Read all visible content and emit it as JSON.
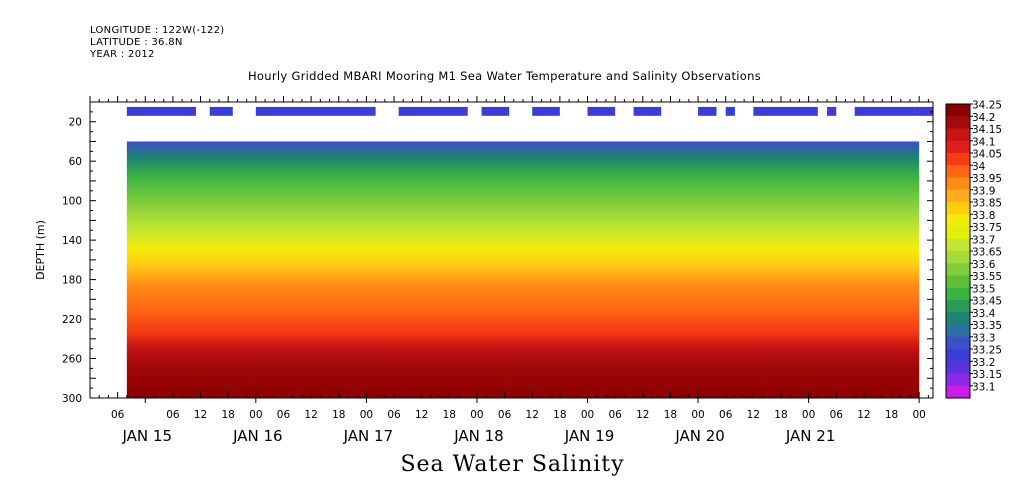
{
  "header": {
    "longitude": "LONGITUDE : 122W(-122)",
    "latitude": "LATITUDE : 36.8N",
    "year": "YEAR : 2012"
  },
  "chart_data": {
    "type": "heatmap",
    "title": "Hourly Gridded MBARI Mooring M1 Sea Water Temperature and Salinity Observations",
    "footer_title": "Sea Water Salinity",
    "ylabel": "DEPTH (m)",
    "xlabel": "",
    "xlim_hours_since_jan15_00": [
      -12,
      171
    ],
    "ylim": [
      300,
      0
    ],
    "y_ticks": [
      20,
      60,
      100,
      140,
      180,
      220,
      260,
      300
    ],
    "x_hour_ticks": [
      {
        "h": -6,
        "label": "06"
      },
      {
        "h": 0,
        "label": ""
      },
      {
        "h": 6,
        "label": "06"
      },
      {
        "h": 12,
        "label": "12"
      },
      {
        "h": 18,
        "label": "18"
      },
      {
        "h": 24,
        "label": "00"
      },
      {
        "h": 30,
        "label": "06"
      },
      {
        "h": 36,
        "label": "12"
      },
      {
        "h": 42,
        "label": "18"
      },
      {
        "h": 48,
        "label": "00"
      },
      {
        "h": 54,
        "label": "06"
      },
      {
        "h": 60,
        "label": "12"
      },
      {
        "h": 66,
        "label": "18"
      },
      {
        "h": 72,
        "label": "00"
      },
      {
        "h": 78,
        "label": "06"
      },
      {
        "h": 84,
        "label": "12"
      },
      {
        "h": 90,
        "label": "18"
      },
      {
        "h": 96,
        "label": "00"
      },
      {
        "h": 102,
        "label": "06"
      },
      {
        "h": 108,
        "label": "12"
      },
      {
        "h": 114,
        "label": "18"
      },
      {
        "h": 120,
        "label": "00"
      },
      {
        "h": 126,
        "label": "06"
      },
      {
        "h": 132,
        "label": "12"
      },
      {
        "h": 138,
        "label": "18"
      },
      {
        "h": 144,
        "label": "00"
      },
      {
        "h": 150,
        "label": "06"
      },
      {
        "h": 156,
        "label": "12"
      },
      {
        "h": 162,
        "label": "18"
      },
      {
        "h": 168,
        "label": "00"
      }
    ],
    "x_day_labels": [
      {
        "h": 0,
        "label": "JAN 15"
      },
      {
        "h": 24,
        "label": "JAN 16"
      },
      {
        "h": 48,
        "label": "JAN 17"
      },
      {
        "h": 72,
        "label": "JAN 18"
      },
      {
        "h": 96,
        "label": "JAN 19"
      },
      {
        "h": 120,
        "label": "JAN 20"
      },
      {
        "h": 144,
        "label": "JAN 21"
      }
    ],
    "data_start_hour": -4,
    "data_end_hour": 168,
    "data_top_depth": 40,
    "surface_segments_hours": [
      [
        -4,
        11
      ],
      [
        14,
        19
      ],
      [
        24,
        50
      ],
      [
        55,
        70
      ],
      [
        73,
        79
      ],
      [
        84,
        90
      ],
      [
        96,
        102
      ],
      [
        106,
        112
      ],
      [
        120,
        124
      ],
      [
        126,
        128
      ],
      [
        132,
        146
      ],
      [
        148,
        150
      ],
      [
        154,
        167
      ],
      [
        167,
        171
      ]
    ],
    "surface_depth_range": [
      5,
      14
    ],
    "colorbar": {
      "levels": [
        "34.25",
        "34.2",
        "34.15",
        "34.1",
        "34.05",
        "34",
        "33.95",
        "33.9",
        "33.85",
        "33.8",
        "33.75",
        "33.7",
        "33.65",
        "33.6",
        "33.55",
        "33.5",
        "33.45",
        "33.4",
        "33.35",
        "33.3",
        "33.25",
        "33.2",
        "33.15",
        "33.1"
      ],
      "colors": [
        "#8b0000",
        "#a50a0a",
        "#c81414",
        "#e01e1e",
        "#f53c14",
        "#ff6414",
        "#ff8c14",
        "#ffac1e",
        "#ffcc14",
        "#f5eb0a",
        "#e1f00a",
        "#c3e632",
        "#a5dc3c",
        "#82cd3c",
        "#5fbe37",
        "#3cb441",
        "#289b55",
        "#1e8273",
        "#2d6ea5",
        "#3c50c8",
        "#3c3cd7",
        "#5a32dc",
        "#8c28e6",
        "#c81ee6"
      ]
    }
  }
}
